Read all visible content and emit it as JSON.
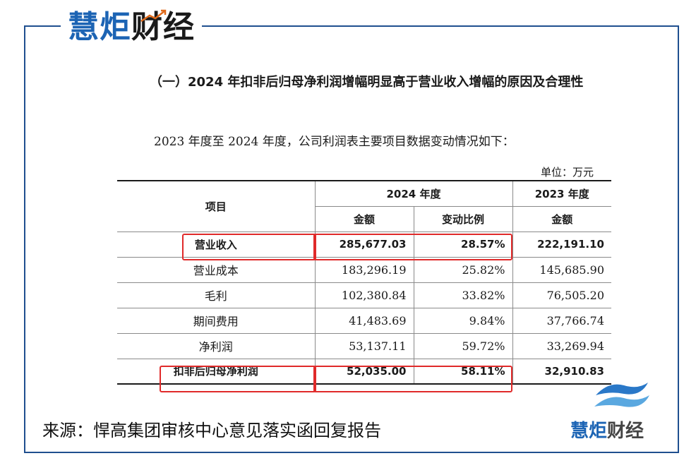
{
  "brand": {
    "name_part1": "慧炬",
    "name_part2": "财经"
  },
  "heading": "（一）2024 年扣非后归母净利润增幅明显高于营业收入增幅的原因及合理性",
  "intro": "2023 年度至 2024 年度，公司利润表主要项目数据变动情况如下：",
  "unit": "单位：万元",
  "table": {
    "header_item": "项目",
    "header_2024": "2024 年度",
    "header_2023": "2023 年度",
    "sub_amount": "金额",
    "sub_change": "变动比例",
    "sub_amount_2023": "金额",
    "rows": [
      {
        "name": "营业收入",
        "amount_2024": "285,677.03",
        "change": "28.57%",
        "amount_2023": "222,191.10"
      },
      {
        "name": "营业成本",
        "amount_2024": "183,296.19",
        "change": "25.82%",
        "amount_2023": "145,685.90"
      },
      {
        "name": "毛利",
        "amount_2024": "102,380.84",
        "change": "33.82%",
        "amount_2023": "76,505.20"
      },
      {
        "name": "期间费用",
        "amount_2024": "41,483.69",
        "change": "9.84%",
        "amount_2023": "37,766.74"
      },
      {
        "name": "净利润",
        "amount_2024": "53,137.11",
        "change": "59.72%",
        "amount_2023": "33,269.94"
      },
      {
        "name": "扣非后归母净利润",
        "amount_2024": "52,035.00",
        "change": "58.11%",
        "amount_2023": "32,910.83"
      }
    ]
  },
  "highlight_color": "#e02a2a",
  "accent_color": "#1c64b4",
  "source": "来源：悍高集团审核中心意见落实函回复报告",
  "logo": {
    "text_part1": "慧炬",
    "text_part2": "财经",
    "icon": "wave-logo-icon"
  }
}
